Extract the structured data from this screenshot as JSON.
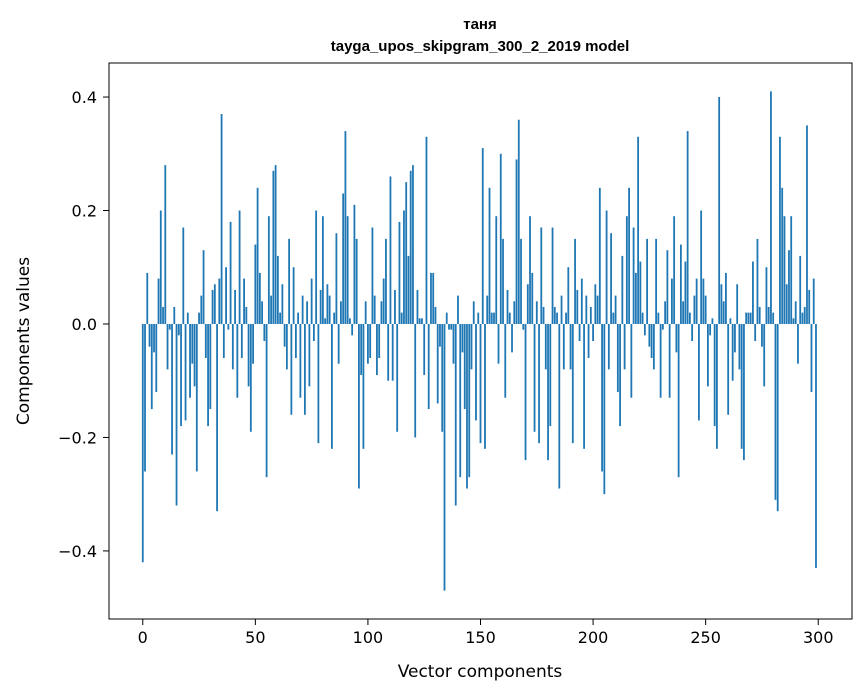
{
  "chart_data": {
    "type": "bar",
    "title": "таня",
    "subtitle": "tayga_upos_skipgram_300_2_2019 model",
    "xlabel": "Vector components",
    "ylabel": "Components values",
    "xlim": [
      -15,
      315
    ],
    "ylim": [
      -0.52,
      0.46
    ],
    "xticks": [
      0,
      50,
      100,
      150,
      200,
      250,
      300
    ],
    "xtick_labels": [
      "0",
      "50",
      "100",
      "150",
      "200",
      "250",
      "300"
    ],
    "yticks": [
      -0.4,
      -0.2,
      0.0,
      0.2,
      0.4
    ],
    "ytick_labels": [
      "−0.4",
      "−0.2",
      "0.0",
      "0.2",
      "0.4"
    ],
    "grid": false,
    "color": "#1f77b4",
    "x": [
      0,
      1,
      2,
      3,
      4,
      5,
      6,
      7,
      8,
      9,
      10,
      11,
      12,
      13,
      14,
      15,
      16,
      17,
      18,
      19,
      20,
      21,
      22,
      23,
      24,
      25,
      26,
      27,
      28,
      29,
      30,
      31,
      32,
      33,
      34,
      35,
      36,
      37,
      38,
      39,
      40,
      41,
      42,
      43,
      44,
      45,
      46,
      47,
      48,
      49,
      50,
      51,
      52,
      53,
      54,
      55,
      56,
      57,
      58,
      59,
      60,
      61,
      62,
      63,
      64,
      65,
      66,
      67,
      68,
      69,
      70,
      71,
      72,
      73,
      74,
      75,
      76,
      77,
      78,
      79,
      80,
      81,
      82,
      83,
      84,
      85,
      86,
      87,
      88,
      89,
      90,
      91,
      92,
      93,
      94,
      95,
      96,
      97,
      98,
      99,
      100,
      101,
      102,
      103,
      104,
      105,
      106,
      107,
      108,
      109,
      110,
      111,
      112,
      113,
      114,
      115,
      116,
      117,
      118,
      119,
      120,
      121,
      122,
      123,
      124,
      125,
      126,
      127,
      128,
      129,
      130,
      131,
      132,
      133,
      134,
      135,
      136,
      137,
      138,
      139,
      140,
      141,
      142,
      143,
      144,
      145,
      146,
      147,
      148,
      149,
      150,
      151,
      152,
      153,
      154,
      155,
      156,
      157,
      158,
      159,
      160,
      161,
      162,
      163,
      164,
      165,
      166,
      167,
      168,
      169,
      170,
      171,
      172,
      173,
      174,
      175,
      176,
      177,
      178,
      179,
      180,
      181,
      182,
      183,
      184,
      185,
      186,
      187,
      188,
      189,
      190,
      191,
      192,
      193,
      194,
      195,
      196,
      197,
      198,
      199,
      200,
      201,
      202,
      203,
      204,
      205,
      206,
      207,
      208,
      209,
      210,
      211,
      212,
      213,
      214,
      215,
      216,
      217,
      218,
      219,
      220,
      221,
      222,
      223,
      224,
      225,
      226,
      227,
      228,
      229,
      230,
      231,
      232,
      233,
      234,
      235,
      236,
      237,
      238,
      239,
      240,
      241,
      242,
      243,
      244,
      245,
      246,
      247,
      248,
      249,
      250,
      251,
      252,
      253,
      254,
      255,
      256,
      257,
      258,
      259,
      260,
      261,
      262,
      263,
      264,
      265,
      266,
      267,
      268,
      269,
      270,
      271,
      272,
      273,
      274,
      275,
      276,
      277,
      278,
      279,
      280,
      281,
      282,
      283,
      284,
      285,
      286,
      287,
      288,
      289,
      290,
      291,
      292,
      293,
      294,
      295,
      296,
      297,
      298,
      299
    ],
    "values": [
      -0.42,
      -0.26,
      0.09,
      -0.04,
      -0.15,
      -0.05,
      -0.12,
      0.08,
      0.2,
      0.03,
      0.28,
      -0.08,
      -0.01,
      -0.23,
      0.03,
      -0.32,
      -0.02,
      -0.18,
      0.17,
      -0.17,
      0.02,
      -0.13,
      -0.07,
      -0.11,
      -0.26,
      0.02,
      0.05,
      0.13,
      -0.06,
      -0.18,
      -0.15,
      0.06,
      0.07,
      -0.33,
      0.08,
      0.37,
      -0.06,
      0.1,
      -0.01,
      0.18,
      -0.08,
      0.06,
      -0.13,
      0.2,
      -0.06,
      0.08,
      0.03,
      -0.11,
      -0.19,
      -0.07,
      0.14,
      0.24,
      0.09,
      0.04,
      -0.03,
      -0.27,
      0.19,
      0.05,
      0.27,
      0.28,
      0.12,
      0.02,
      0.07,
      -0.04,
      -0.08,
      0.15,
      -0.16,
      0.1,
      -0.06,
      0.02,
      -0.13,
      0.05,
      -0.16,
      0.04,
      -0.11,
      0.08,
      -0.03,
      0.2,
      -0.21,
      0.06,
      0.19,
      0.01,
      0.07,
      0.05,
      -0.22,
      0.02,
      0.16,
      -0.07,
      0.04,
      0.23,
      0.34,
      0.19,
      0.01,
      -0.02,
      0.21,
      0.15,
      -0.29,
      -0.09,
      -0.22,
      0.04,
      -0.07,
      -0.06,
      0.17,
      0.05,
      -0.09,
      -0.06,
      0.04,
      0.08,
      0.15,
      -0.1,
      0.26,
      -0.1,
      0.06,
      -0.19,
      0.18,
      0.02,
      0.2,
      0.25,
      0.12,
      0.27,
      0.28,
      -0.2,
      0.06,
      0.01,
      0.01,
      -0.09,
      0.33,
      -0.15,
      0.09,
      0.09,
      0.03,
      -0.14,
      -0.04,
      -0.19,
      -0.47,
      0.02,
      -0.01,
      -0.01,
      -0.07,
      -0.32,
      0.05,
      -0.27,
      -0.05,
      -0.15,
      -0.29,
      -0.27,
      -0.08,
      0.04,
      -0.17,
      0.02,
      -0.21,
      0.31,
      -0.22,
      0.05,
      0.24,
      0.02,
      0.02,
      0.19,
      -0.07,
      0.3,
      0.15,
      -0.13,
      0.06,
      0.02,
      -0.05,
      0.04,
      0.29,
      0.36,
      0.15,
      -0.01,
      -0.24,
      0.07,
      0.19,
      0.09,
      -0.19,
      0.04,
      -0.21,
      0.17,
      0.03,
      -0.08,
      -0.24,
      -0.18,
      0.17,
      0.03,
      0.02,
      -0.29,
      0.05,
      -0.08,
      0.02,
      0.1,
      -0.08,
      -0.21,
      0.15,
      0.06,
      -0.03,
      0.08,
      -0.22,
      0.05,
      -0.06,
      0.03,
      -0.03,
      0.07,
      0.05,
      0.24,
      -0.26,
      -0.3,
      0.2,
      -0.08,
      0.16,
      0.02,
      0.05,
      -0.12,
      -0.18,
      0.12,
      -0.08,
      0.19,
      0.24,
      -0.13,
      0.17,
      0.09,
      0.33,
      0.11,
      0.02,
      -0.02,
      0.15,
      -0.04,
      -0.06,
      -0.08,
      0.15,
      0.02,
      -0.13,
      -0.01,
      0.04,
      0.13,
      -0.13,
      0.08,
      0.19,
      -0.05,
      -0.27,
      0.14,
      0.04,
      0.11,
      0.34,
      0.02,
      -0.03,
      0.05,
      0.08,
      -0.17,
      0.2,
      0.08,
      0.05,
      -0.11,
      -0.02,
      0.01,
      -0.18,
      -0.22,
      0.4,
      0.07,
      0.04,
      0.09,
      -0.16,
      0.01,
      -0.1,
      -0.05,
      0.07,
      -0.08,
      -0.22,
      -0.24,
      0.02,
      0.02,
      0.02,
      0.11,
      -0.03,
      0.15,
      0.03,
      -0.04,
      -0.11,
      0.1,
      0.03,
      0.41,
      0.02,
      -0.31,
      -0.33,
      0.33,
      0.24,
      0.19,
      0.07,
      0.13,
      0.19,
      0.01,
      0.04,
      -0.07,
      0.12,
      0.02,
      0.03,
      0.35,
      0.06,
      -0.12,
      0.08,
      -0.43
    ]
  }
}
